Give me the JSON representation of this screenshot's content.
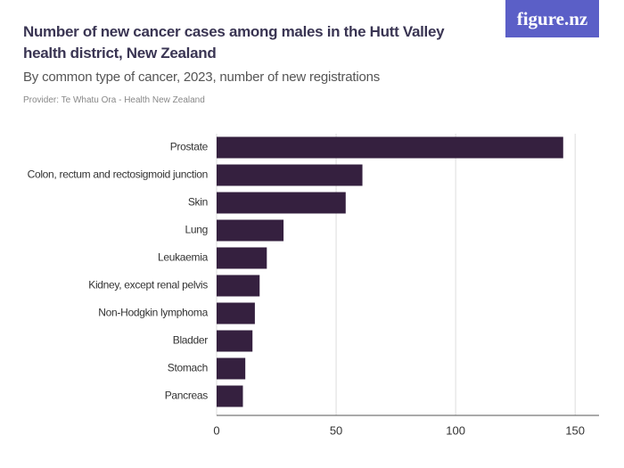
{
  "chart_data": {
    "type": "bar",
    "orientation": "horizontal",
    "title": "Number of new cancer cases among males in the Hutt Valley health district, New Zealand",
    "subtitle": "By common type of cancer, 2023, number of new registrations",
    "provider": "Provider: Te Whatu Ora - Health New Zealand",
    "logo": "figure.nz",
    "categories": [
      "Prostate",
      "Colon, rectum and rectosigmoid junction",
      "Skin",
      "Lung",
      "Leukaemia",
      "Kidney, except renal pelvis",
      "Non-Hodgkin lymphoma",
      "Bladder",
      "Stomach",
      "Pancreas"
    ],
    "values": [
      145,
      61,
      54,
      28,
      21,
      18,
      16,
      15,
      12,
      11
    ],
    "color": "#35203f",
    "xlim": [
      0,
      160
    ],
    "xticks": [
      0,
      50,
      100,
      150
    ],
    "grid": true
  }
}
